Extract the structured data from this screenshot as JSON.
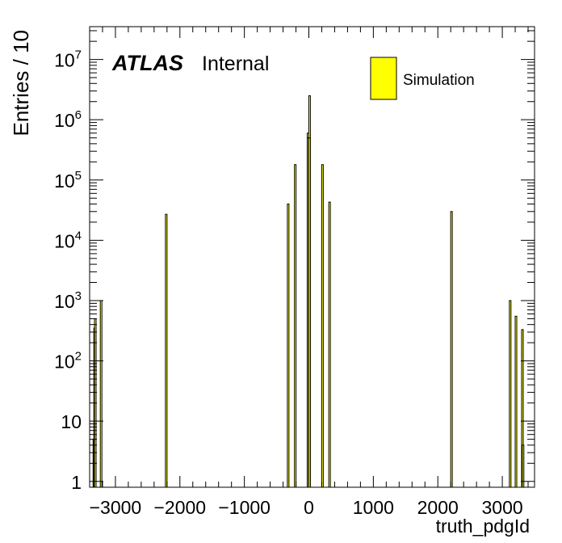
{
  "chart_data": {
    "type": "bar",
    "xlabel": "truth_pdgId",
    "ylabel": "Entries / 10",
    "xlim": [
      -3400,
      3500
    ],
    "ylim": [
      0.8,
      35000000
    ],
    "log_y": true,
    "grid": false,
    "x_ticks": [
      {
        "value": -3000,
        "label": "−3000"
      },
      {
        "value": -2000,
        "label": "−2000"
      },
      {
        "value": -1000,
        "label": "−1000"
      },
      {
        "value": 0,
        "label": "0"
      },
      {
        "value": 1000,
        "label": "1000"
      },
      {
        "value": 2000,
        "label": "2000"
      },
      {
        "value": 3000,
        "label": "3000"
      }
    ],
    "y_ticks": [
      {
        "value": 1,
        "base": "1",
        "exp": ""
      },
      {
        "value": 10,
        "base": "10",
        "exp": ""
      },
      {
        "value": 100,
        "base": "10",
        "exp": "2"
      },
      {
        "value": 1000,
        "base": "10",
        "exp": "3"
      },
      {
        "value": 10000,
        "base": "10",
        "exp": "4"
      },
      {
        "value": 100000,
        "base": "10",
        "exp": "5"
      },
      {
        "value": 1000000,
        "base": "10",
        "exp": "6"
      },
      {
        "value": 10000000,
        "base": "10",
        "exp": "7"
      }
    ],
    "annotation": {
      "bold": "ATLAS",
      "text": "Internal"
    },
    "legend": {
      "position": "top-right",
      "entries": [
        {
          "label": "Simulation",
          "color": "#ffff00"
        }
      ]
    },
    "series": [
      {
        "fill_color": "#ffff00",
        "line_color": "#000000",
        "bins": [
          {
            "x": -3334,
            "y": 5
          },
          {
            "x": -3322,
            "y": 350
          },
          {
            "x": -3312,
            "y": 500
          },
          {
            "x": -3222,
            "y": 1000
          },
          {
            "x": -2212,
            "y": 27000
          },
          {
            "x": -321,
            "y": 40000
          },
          {
            "x": -211,
            "y": 180000
          },
          {
            "x": -13,
            "y": 600000
          },
          {
            "x": -11,
            "y": 500000
          },
          {
            "x": 11,
            "y": 2500000
          },
          {
            "x": 13,
            "y": 500000
          },
          {
            "x": 211,
            "y": 180000
          },
          {
            "x": 321,
            "y": 43000
          },
          {
            "x": 2212,
            "y": 30000
          },
          {
            "x": 3122,
            "y": 1000
          },
          {
            "x": 3212,
            "y": 550
          },
          {
            "x": 3312,
            "y": 330
          },
          {
            "x": 3322,
            "y": 4
          }
        ]
      }
    ]
  }
}
